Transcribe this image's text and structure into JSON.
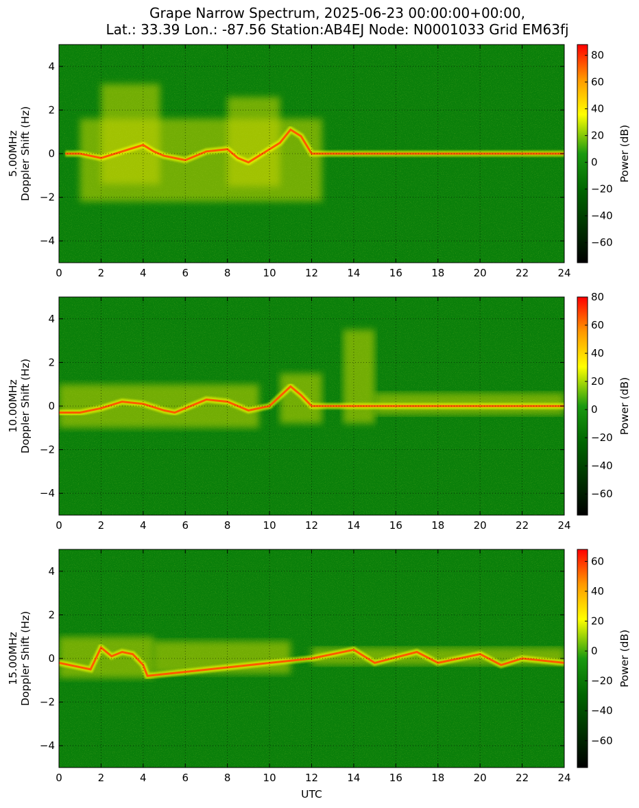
{
  "figure": {
    "title_line1": "Grape Narrow Spectrum, 2025-06-23 00:00:00+00:00,",
    "title_line2": "Lat.: 33.39 Lon.: -87.56 Station:AB4EJ Node: N0001033 Grid EM63fj"
  },
  "colors": {
    "colormap": [
      "#000000",
      "#008000",
      "#ffff00",
      "#ff0000"
    ],
    "background_green": "#0a7f0a",
    "grid": "#000000"
  },
  "chart_data": [
    {
      "type": "heatmap",
      "subplot": "5.00MHz",
      "ylabel": "5.00MHz\nDoppler Shift (Hz)",
      "xlabel": "",
      "xlim": [
        0,
        24
      ],
      "ylim": [
        -5,
        5
      ],
      "xticks": [
        0,
        2,
        4,
        6,
        8,
        10,
        12,
        14,
        16,
        18,
        20,
        22,
        24
      ],
      "yticks": [
        -4,
        -2,
        0,
        2,
        4
      ],
      "grid": true,
      "colorbar": {
        "label": "Power (dB)",
        "range": [
          -75,
          88
        ],
        "ticks": [
          -60,
          -40,
          -20,
          0,
          20,
          40,
          60,
          80
        ]
      },
      "doppler_trace": {
        "x": [
          0.3,
          1,
          2,
          3,
          4,
          4.5,
          5,
          6,
          7,
          8,
          8.5,
          9,
          9.5,
          10,
          10.5,
          11,
          11.5,
          12,
          24
        ],
        "y": [
          0,
          0,
          -0.2,
          0.1,
          0.4,
          0.1,
          -0.1,
          -0.3,
          0.1,
          0.2,
          -0.2,
          -0.4,
          -0.1,
          0.2,
          0.5,
          1.1,
          0.8,
          0,
          0
        ]
      }
    },
    {
      "type": "heatmap",
      "subplot": "10.00MHz",
      "ylabel": "10.00MHz\nDoppler Shift (Hz)",
      "xlabel": "",
      "xlim": [
        0,
        24
      ],
      "ylim": [
        -5,
        5
      ],
      "xticks": [
        0,
        2,
        4,
        6,
        8,
        10,
        12,
        14,
        16,
        18,
        20,
        22,
        24
      ],
      "yticks": [
        -4,
        -2,
        0,
        2,
        4
      ],
      "grid": true,
      "colorbar": {
        "label": "Power (dB)",
        "range": [
          -75,
          80
        ],
        "ticks": [
          -60,
          -40,
          -20,
          0,
          20,
          40,
          60,
          80
        ]
      },
      "doppler_trace": {
        "x": [
          0,
          1,
          2,
          3,
          4,
          5,
          5.5,
          6,
          7,
          8,
          8.5,
          9,
          10,
          11,
          11.5,
          12,
          24
        ],
        "y": [
          -0.3,
          -0.3,
          -0.1,
          0.2,
          0.1,
          -0.2,
          -0.3,
          -0.1,
          0.3,
          0.2,
          0,
          -0.2,
          0,
          0.9,
          0.5,
          0,
          0
        ]
      }
    },
    {
      "type": "heatmap",
      "subplot": "15.00MHz",
      "ylabel": "15.00MHz\nDoppler Shift (Hz)",
      "xlabel": "UTC",
      "xlim": [
        0,
        24
      ],
      "ylim": [
        -5,
        5
      ],
      "xticks": [
        0,
        2,
        4,
        6,
        8,
        10,
        12,
        14,
        16,
        18,
        20,
        22,
        24
      ],
      "yticks": [
        -4,
        -2,
        0,
        2,
        4
      ],
      "grid": true,
      "colorbar": {
        "label": "Power (dB)",
        "range": [
          -78,
          68
        ],
        "ticks": [
          -60,
          -40,
          -20,
          0,
          20,
          40,
          60
        ]
      },
      "doppler_trace": {
        "x": [
          0,
          1,
          1.5,
          2,
          2.5,
          3,
          3.5,
          4,
          4.2,
          12,
          14,
          15,
          17,
          18,
          20,
          21,
          22,
          24
        ],
        "y": [
          -0.2,
          -0.4,
          -0.5,
          0.5,
          0.1,
          0.3,
          0.2,
          -0.3,
          -0.8,
          0,
          0.4,
          -0.2,
          0.3,
          -0.2,
          0.2,
          -0.3,
          0,
          -0.2
        ]
      }
    }
  ]
}
